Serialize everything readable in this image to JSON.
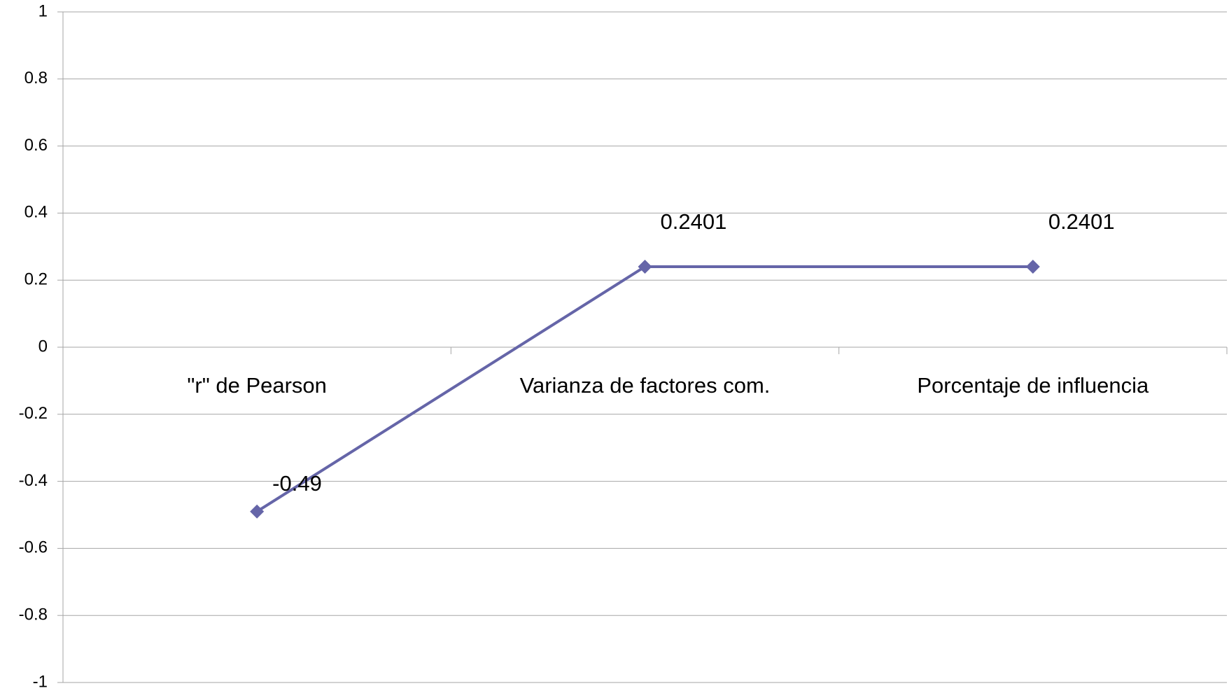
{
  "chart_data": {
    "type": "line",
    "categories": [
      "\"r\" de Pearson",
      "Varianza de factores com.",
      "Porcentaje de influencia"
    ],
    "series": [
      {
        "color": "#6565a8",
        "values": [
          -0.49,
          0.2401,
          0.2401
        ]
      }
    ],
    "ylim": [
      -1,
      1
    ],
    "yticks": [
      -1,
      -0.8,
      -0.6,
      -0.4,
      -0.2,
      0,
      0.2,
      0.4,
      0.6,
      0.8,
      1
    ],
    "grid": true
  }
}
